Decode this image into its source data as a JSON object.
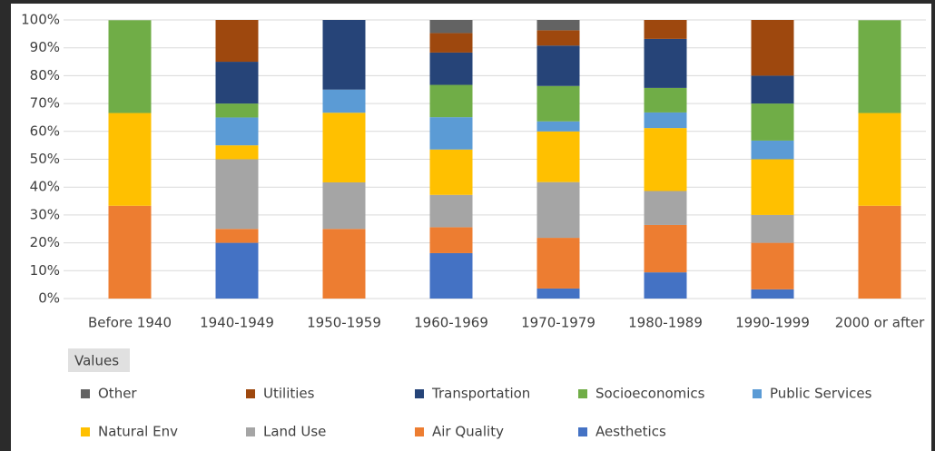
{
  "chart_data": {
    "type": "stacked_percent_bar",
    "field_button": "Values",
    "categories": [
      "Before 1940",
      "1940-1949",
      "1950-1959",
      "1960-1969",
      "1970-1979",
      "1980-1989",
      "1990-1999",
      "2000 or after"
    ],
    "series": [
      {
        "name": "Other",
        "color": "#636363",
        "values": [
          0,
          0,
          0,
          4.7,
          3.7,
          0,
          0,
          0
        ]
      },
      {
        "name": "Utilities",
        "color": "#9e480e",
        "values": [
          0,
          15,
          0,
          7.0,
          5.5,
          6.8,
          20,
          0
        ]
      },
      {
        "name": "Transportation",
        "color": "#264478",
        "values": [
          0,
          15,
          25,
          11.6,
          14.5,
          17.6,
          10,
          0
        ]
      },
      {
        "name": "Socioeconomics",
        "color": "#70ad47",
        "values": [
          33.3,
          5,
          0,
          11.6,
          12.7,
          8.8,
          13.3,
          33.3
        ]
      },
      {
        "name": "Public Services",
        "color": "#5b9bd5",
        "values": [
          0,
          10,
          8.3,
          11.6,
          3.6,
          5.6,
          6.7,
          0
        ]
      },
      {
        "name": "Natural Env",
        "color": "#ffc000",
        "values": [
          33.3,
          5,
          25,
          16.3,
          18.2,
          22.6,
          20,
          33.3
        ]
      },
      {
        "name": "Land Use",
        "color": "#a5a5a5",
        "values": [
          0,
          25,
          16.7,
          11.6,
          20,
          12.2,
          10,
          0
        ]
      },
      {
        "name": "Air Quality",
        "color": "#ed7d31",
        "values": [
          33.3,
          5,
          25,
          9.3,
          18.2,
          17.0,
          16.7,
          33.3
        ]
      },
      {
        "name": "Aesthetics",
        "color": "#4472c4",
        "values": [
          0,
          20,
          0,
          16.3,
          3.6,
          9.4,
          3.3,
          0
        ]
      }
    ],
    "ylim": [
      0,
      100
    ],
    "yticks": [
      {
        "value": 0,
        "label": "0%"
      },
      {
        "value": 10,
        "label": "10%"
      },
      {
        "value": 20,
        "label": "20%"
      },
      {
        "value": 30,
        "label": "30%"
      },
      {
        "value": 40,
        "label": "40%"
      },
      {
        "value": 50,
        "label": "50%"
      },
      {
        "value": 60,
        "label": "60%"
      },
      {
        "value": 70,
        "label": "70%"
      },
      {
        "value": 80,
        "label": "80%"
      },
      {
        "value": 90,
        "label": "90%"
      },
      {
        "value": 100,
        "label": "100%"
      }
    ],
    "grid": true,
    "legend": "bottom"
  }
}
